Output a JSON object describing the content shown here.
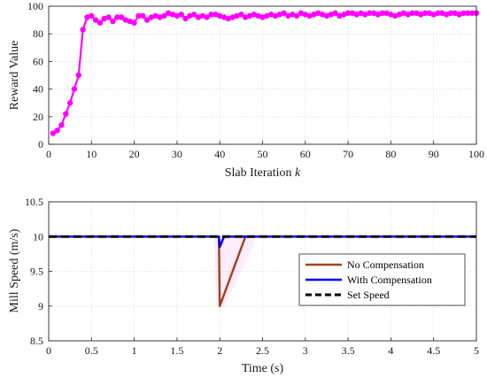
{
  "chart_data": [
    {
      "type": "line",
      "xlabel": "Slab Iteration",
      "xlabel_var": "k",
      "ylabel": "Reward Value",
      "xlim": [
        0,
        100
      ],
      "ylim": [
        0,
        100
      ],
      "xticks": [
        0,
        10,
        20,
        30,
        40,
        50,
        60,
        70,
        80,
        90,
        100
      ],
      "yticks": [
        0,
        20,
        40,
        60,
        80,
        100
      ],
      "grid": true,
      "series": [
        {
          "color": "#ff00ff",
          "marker": "circle",
          "x": [
            1,
            2,
            3,
            4,
            5,
            6,
            7,
            8,
            9,
            10,
            11,
            12,
            13,
            14,
            15,
            16,
            17,
            18,
            19,
            20,
            21,
            22,
            23,
            24,
            25,
            26,
            27,
            28,
            29,
            30,
            31,
            32,
            33,
            34,
            35,
            36,
            37,
            38,
            39,
            40,
            41,
            42,
            43,
            44,
            45,
            46,
            47,
            48,
            49,
            50,
            51,
            52,
            53,
            54,
            55,
            56,
            57,
            58,
            59,
            60,
            61,
            62,
            63,
            64,
            65,
            66,
            67,
            68,
            69,
            70,
            71,
            72,
            73,
            74,
            75,
            76,
            77,
            78,
            79,
            80,
            81,
            82,
            83,
            84,
            85,
            86,
            87,
            88,
            89,
            90,
            91,
            92,
            93,
            94,
            95,
            96,
            97,
            98,
            99,
            100
          ],
          "y": [
            8,
            10,
            14,
            22,
            30,
            40,
            50,
            83,
            92,
            93,
            90,
            88,
            91,
            92,
            89,
            92,
            92,
            90,
            89,
            88,
            93,
            93,
            90,
            92,
            93,
            92,
            93,
            95,
            94,
            93,
            94,
            91,
            93,
            94,
            92,
            93,
            92,
            94,
            94,
            93,
            92,
            91,
            92,
            93,
            94,
            92,
            93,
            94,
            93,
            92,
            93,
            94,
            93,
            94,
            95,
            93,
            94,
            93,
            95,
            94,
            93,
            94,
            95,
            94,
            93,
            94,
            95,
            93,
            94,
            95,
            95,
            94,
            95,
            94,
            95,
            95,
            94,
            95,
            95,
            94,
            93,
            94,
            95,
            94,
            95,
            95,
            94,
            95,
            95,
            94,
            95,
            95,
            94,
            95,
            95,
            94,
            95,
            95,
            95,
            95
          ]
        }
      ]
    },
    {
      "type": "line",
      "xlabel": "Time (s)",
      "ylabel": "Mill Speed (m/s)",
      "xlim": [
        0,
        5
      ],
      "ylim": [
        8.5,
        10.5
      ],
      "xticks": [
        0,
        0.5,
        1,
        1.5,
        2,
        2.5,
        3,
        3.5,
        4,
        4.5,
        5
      ],
      "yticks": [
        8.5,
        9,
        9.5,
        10,
        10.5
      ],
      "grid": true,
      "legend": "right",
      "series": [
        {
          "name": "No Compensation",
          "color": "#a0441c",
          "style": "solid",
          "x": [
            0,
            1.99,
            2.0,
            2.3,
            5
          ],
          "y": [
            10,
            10,
            9.0,
            10,
            10
          ]
        },
        {
          "name": "With Compensation",
          "color": "#0000ff",
          "style": "solid",
          "x": [
            0,
            1.99,
            2.0,
            2.05,
            5
          ],
          "y": [
            10,
            10,
            9.85,
            10,
            10
          ]
        },
        {
          "name": "Set Speed",
          "color": "#000000",
          "style": "dashed",
          "x": [
            0,
            5
          ],
          "y": [
            10,
            10
          ]
        }
      ]
    }
  ]
}
